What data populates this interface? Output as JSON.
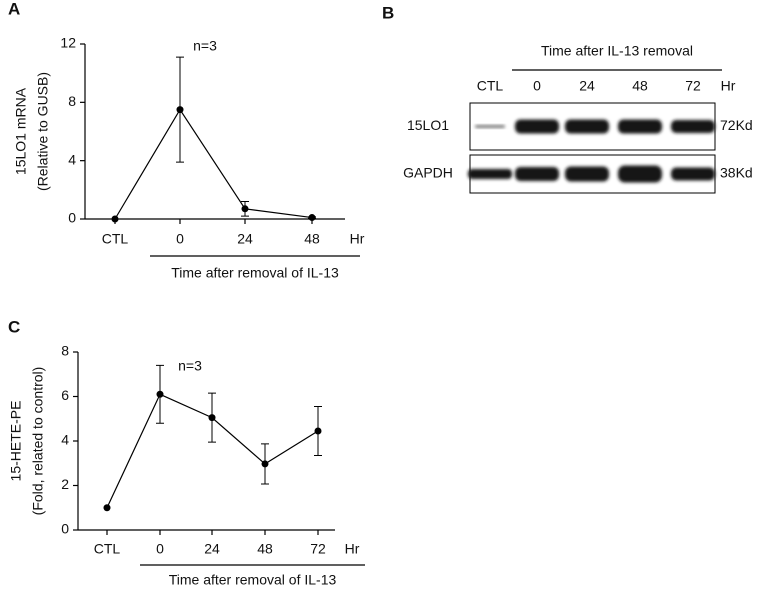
{
  "chart_data": [
    {
      "type": "line",
      "panel": "A",
      "annotation": "n=3",
      "ylabel": [
        "15LO1 mRNA",
        "(Relative to GUSB)"
      ],
      "categories": [
        "CTL",
        "0",
        "24",
        "48"
      ],
      "unit": "Hr",
      "xlabel": "Time after removal of IL-13",
      "values": [
        0,
        7.5,
        0.7,
        0.1
      ],
      "errors": [
        0,
        3.6,
        0.5,
        0.05
      ],
      "color": "#000000",
      "ylim": [
        0,
        12
      ],
      "yticks": [
        0,
        4,
        8,
        12
      ]
    },
    {
      "type": "line",
      "panel": "C",
      "annotation": "n=3",
      "ylabel": [
        "15-HETE-PE",
        "(Fold, related to control)"
      ],
      "categories": [
        "CTL",
        "0",
        "24",
        "48",
        "72"
      ],
      "unit": "Hr",
      "xlabel": "Time after removal of IL-13",
      "values": [
        1,
        6.1,
        5.05,
        2.97,
        4.45
      ],
      "errors": [
        0,
        1.3,
        1.1,
        0.9,
        1.1
      ],
      "color": "#000000",
      "ylim": [
        0,
        8
      ],
      "yticks": [
        0,
        2,
        4,
        6,
        8
      ]
    }
  ],
  "blot": {
    "panel": "B",
    "header": "Time after IL-13 removal",
    "lanes": [
      "CTL",
      "0",
      "24",
      "48",
      "72"
    ],
    "unit": "Hr",
    "rows": [
      {
        "label": "15LO1",
        "size": "72Kd"
      },
      {
        "label": "GAPDH",
        "size": "38Kd"
      }
    ]
  }
}
